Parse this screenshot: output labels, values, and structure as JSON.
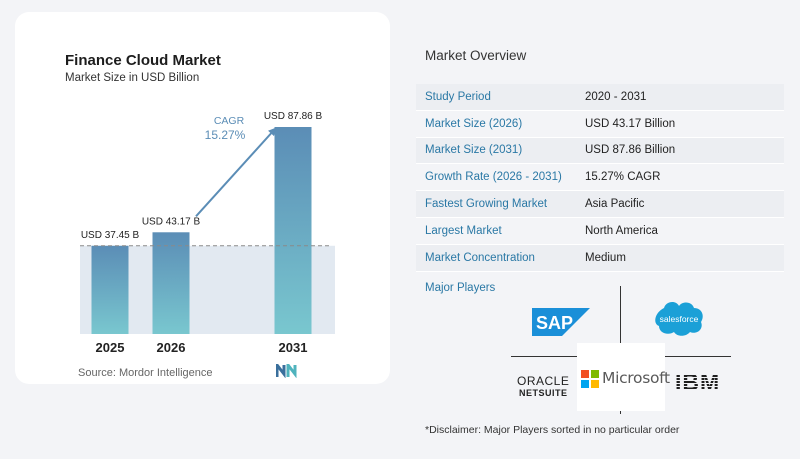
{
  "chart_data": {
    "type": "bar",
    "title": "Finance Cloud Market",
    "subtitle": "Market Size in USD Billion",
    "categories": [
      "2025",
      "2026",
      "2031"
    ],
    "values": [
      37.45,
      43.17,
      87.86
    ],
    "data_labels": [
      "USD 37.45 B",
      "USD 43.17 B",
      "USD 87.86 B"
    ],
    "cagr_label": "CAGR",
    "cagr_value": "15.27%",
    "source": "Source:  Mordor Intelligence",
    "colors": {
      "bar_top": "#5b8db6",
      "bar_bottom": "#79c7cf",
      "band": "#e2e9f1",
      "arrow": "#5b8db6",
      "cagr_text": "#5b8db6"
    }
  },
  "overview": {
    "title": "Market Overview",
    "rows": [
      {
        "label": "Study Period",
        "value": "2020 - 2031"
      },
      {
        "label": "Market Size (2026)",
        "value": "USD 43.17 Billion"
      },
      {
        "label": "Market Size (2031)",
        "value": "USD 87.86 Billion"
      },
      {
        "label": "Growth Rate (2026 - 2031)",
        "value": "15.27% CAGR"
      },
      {
        "label": "Fastest Growing Market",
        "value": "Asia Pacific"
      },
      {
        "label": "Largest Market",
        "value": "North America"
      },
      {
        "label": "Market Concentration",
        "value": "Medium"
      }
    ]
  },
  "players": {
    "title": "Major Players",
    "sap": "SAP",
    "salesforce": "salesforce",
    "microsoft": "Microsoft",
    "oracle_top": "ORACLE",
    "oracle_bottom": "NETSUITE",
    "ibm": "IBM"
  },
  "disclaimer": "*Disclaimer: Major Players sorted in no particular order"
}
